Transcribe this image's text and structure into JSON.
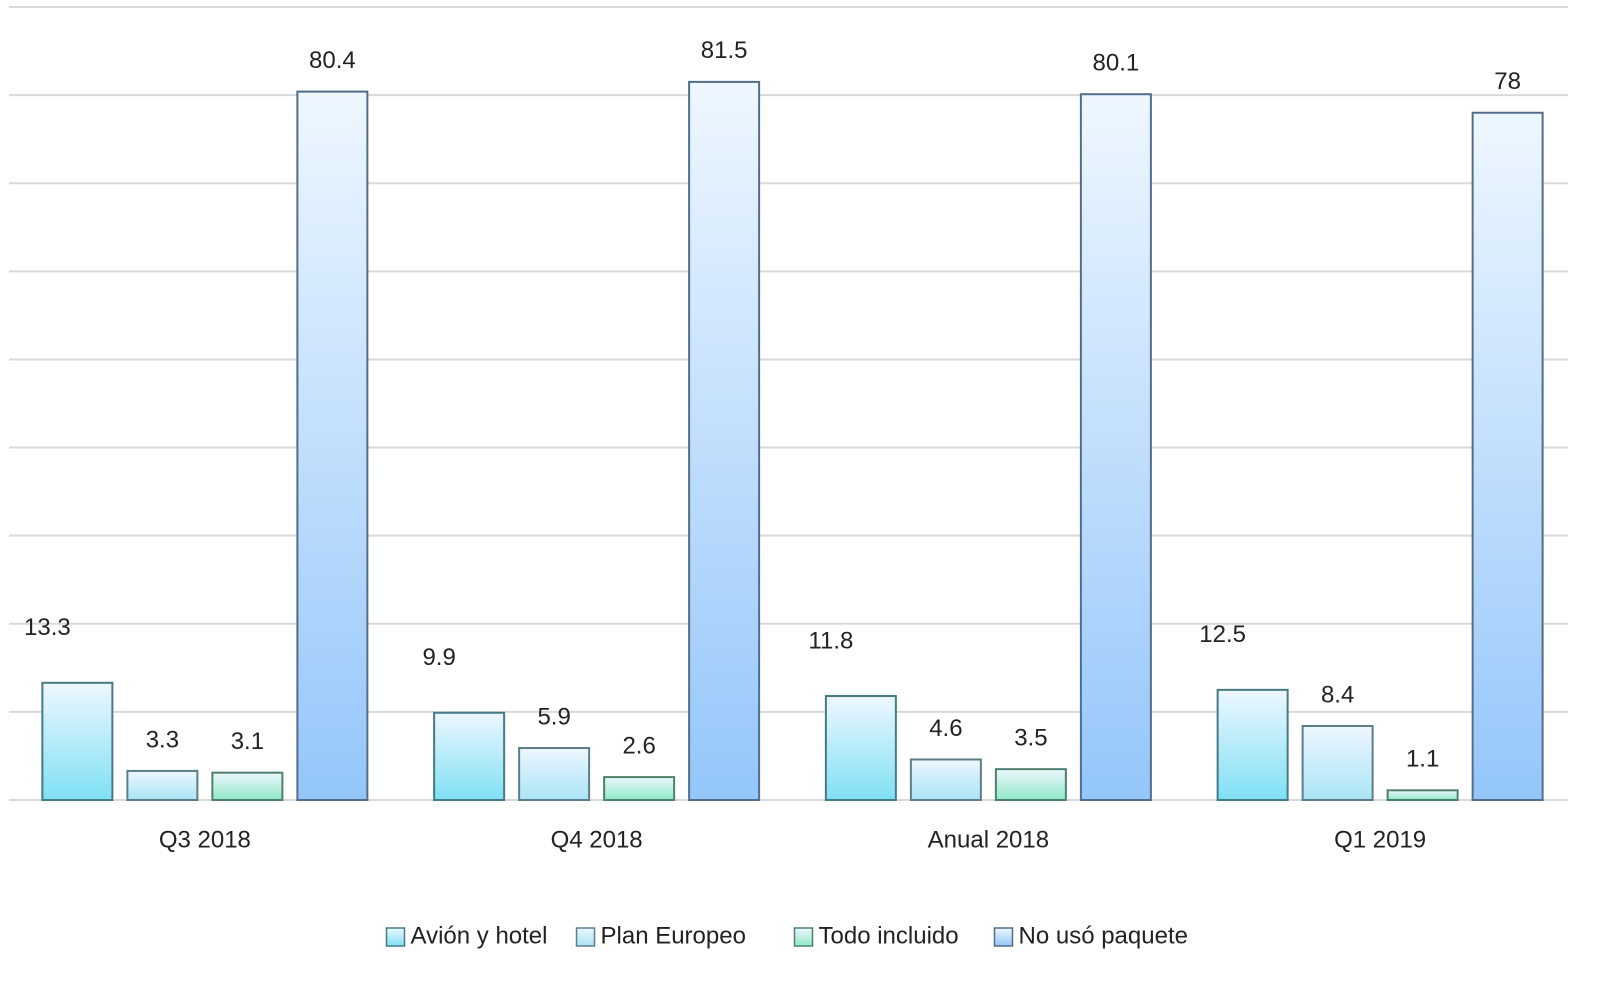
{
  "chart_data": {
    "type": "bar",
    "categories": [
      "Q3 2018",
      "Q4 2018",
      "Anual 2018",
      "Q1 2019"
    ],
    "series": [
      {
        "name": "Avión y hotel",
        "color": "#7fe0f4",
        "values": [
          13.3,
          9.9,
          11.8,
          12.5
        ]
      },
      {
        "name": "Plan Europeo",
        "color": "#a9e4f6",
        "values": [
          3.3,
          5.9,
          4.6,
          8.4
        ]
      },
      {
        "name": "Todo incluido",
        "color": "#8ee8c8",
        "values": [
          3.1,
          2.6,
          3.5,
          1.1
        ]
      },
      {
        "name": "No usó paquete",
        "color": "#94c6fa",
        "values": [
          80.4,
          81.5,
          80.1,
          78
        ]
      }
    ],
    "ylim": [
      0,
      90
    ],
    "yticks": [
      0,
      10,
      20,
      30,
      40,
      50,
      60,
      70,
      80,
      90
    ],
    "grid": true,
    "legend": "bottom"
  }
}
